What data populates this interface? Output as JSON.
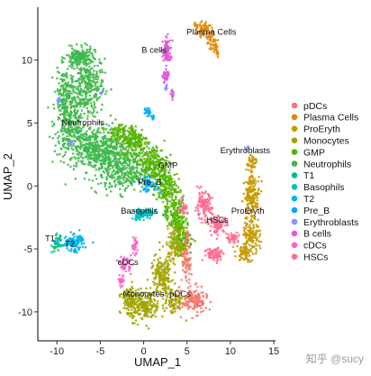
{
  "chart_data": {
    "type": "scatter",
    "title": "",
    "xlabel": "UMAP_1",
    "ylabel": "UMAP_2",
    "xlim": [
      -12.2,
      15.2
    ],
    "ylim": [
      -12.3,
      14.2
    ],
    "xticks": [
      -10,
      -5,
      0,
      5,
      10,
      15
    ],
    "yticks": [
      10,
      5,
      0,
      -5,
      -10
    ],
    "grid": false,
    "legend_position": "right",
    "legend_order": [
      "pDCs",
      "Plasma Cells",
      "ProEryth",
      "Monocytes",
      "GMP",
      "Neutrophils",
      "T1",
      "Basophils",
      "T2",
      "Pre_B",
      "Erythroblasts",
      "B cells",
      "cDCs",
      "HSCs"
    ],
    "clusters": [
      {
        "name": "Neutrophils",
        "color": "#3DB84A",
        "label_at": [
          -7,
          4.8
        ],
        "blobs": [
          [
            -6.5,
            8,
            1.8,
            2.2,
            320
          ],
          [
            -8.5,
            5,
            1.6,
            2.2,
            260
          ],
          [
            -6,
            3,
            2.6,
            1.6,
            340
          ],
          [
            -3.5,
            2.2,
            2.8,
            1.7,
            300
          ],
          [
            -7.4,
            10.2,
            1.4,
            0.7,
            160
          ],
          [
            -9.2,
            7.5,
            0.8,
            1.6,
            120
          ],
          [
            -2,
            1,
            2.2,
            1.4,
            200
          ]
        ]
      },
      {
        "name": "GMP",
        "color": "#53B400",
        "label_at": [
          2.8,
          1.4
        ],
        "blobs": [
          [
            -1,
            3.6,
            1.4,
            1.2,
            160
          ],
          [
            1,
            1.8,
            1.6,
            1.2,
            200
          ],
          [
            2.4,
            0,
            1.2,
            1.4,
            170
          ],
          [
            3.6,
            -2.2,
            1.1,
            1.6,
            170
          ],
          [
            4.5,
            -4.2,
            1.0,
            1.2,
            140
          ],
          [
            -3,
            4.2,
            1.0,
            0.8,
            80
          ]
        ]
      },
      {
        "name": "Monocytes",
        "color": "#A3A500",
        "label_at": [
          0,
          -8.8
        ],
        "blobs": [
          [
            0,
            -9.6,
            1.7,
            1.0,
            220
          ],
          [
            2.1,
            -7.2,
            1.2,
            1.5,
            180
          ],
          [
            3.6,
            -4.7,
            0.9,
            1.2,
            110
          ],
          [
            -1.7,
            -9,
            0.8,
            0.9,
            90
          ],
          [
            3.5,
            -9.2,
            1,
            0.9,
            80
          ]
        ]
      },
      {
        "name": "pDCs",
        "color": "#F8766D",
        "label_at": [
          4.2,
          -8.8
        ],
        "blobs": [
          [
            5.9,
            -9.1,
            1.3,
            0.9,
            150
          ],
          [
            4.9,
            -6.2,
            0.5,
            1.3,
            60
          ],
          [
            5,
            -4.3,
            0.3,
            0.8,
            20
          ]
        ]
      },
      {
        "name": "Plasma Cells",
        "color": "#E38900",
        "label_at": [
          7.8,
          12
        ],
        "blobs": [
          [
            6.9,
            12.4,
            0.7,
            0.5,
            60
          ],
          [
            7.7,
            11.6,
            0.5,
            0.6,
            40
          ],
          [
            8.4,
            11,
            0.3,
            0.6,
            25
          ],
          [
            6,
            12.8,
            0.2,
            0.2,
            6
          ]
        ]
      },
      {
        "name": "ProEryth",
        "color": "#C49A00",
        "label_at": [
          12,
          -2.2
        ],
        "blobs": [
          [
            12.5,
            -0.7,
            0.8,
            1.4,
            150
          ],
          [
            12.4,
            -3.8,
            0.9,
            1.3,
            120
          ],
          [
            11.6,
            -5.3,
            0.8,
            0.6,
            60
          ],
          [
            12.4,
            1.8,
            0.5,
            0.8,
            50
          ]
        ]
      },
      {
        "name": "Erythroblasts",
        "color": "#8494FF",
        "label_at": [
          11.7,
          2.6
        ],
        "blobs": [
          [
            11.9,
            3,
            0.2,
            0.2,
            8
          ],
          [
            -9.8,
            6.8,
            0.25,
            0.25,
            12
          ],
          [
            -4.9,
            7.4,
            0.2,
            0.15,
            6
          ],
          [
            -8.5,
            3.4,
            0.2,
            0.2,
            8
          ],
          [
            2.6,
            7.8,
            0.2,
            0.2,
            8
          ]
        ]
      },
      {
        "name": "HSCs",
        "color": "#FF6C91",
        "label_at": [
          8.5,
          -2.9
        ],
        "blobs": [
          [
            6.9,
            -1.6,
            0.9,
            1,
            120
          ],
          [
            8.6,
            -3.1,
            0.9,
            0.6,
            90
          ],
          [
            8.2,
            -5.4,
            1.1,
            0.5,
            80
          ],
          [
            4.6,
            -1.7,
            0.4,
            0.5,
            30
          ],
          [
            10.3,
            -4.1,
            0.6,
            0.4,
            40
          ]
        ]
      },
      {
        "name": "B cells",
        "color": "#DE5BDD",
        "label_at": [
          1.2,
          10.6
        ],
        "blobs": [
          [
            2.7,
            10.7,
            0.45,
            0.9,
            90
          ],
          [
            2.6,
            8.7,
            0.35,
            0.5,
            40
          ],
          [
            3.3,
            7.2,
            0.25,
            0.3,
            15
          ]
        ]
      },
      {
        "name": "cDCs",
        "color": "#FF61C3",
        "label_at": [
          -1.8,
          -6.3
        ],
        "blobs": [
          [
            -2.1,
            -6.2,
            0.6,
            0.6,
            50
          ],
          [
            -1,
            -4.7,
            0.35,
            0.6,
            30
          ],
          [
            -2.6,
            -7.6,
            0.3,
            0.5,
            20
          ]
        ]
      },
      {
        "name": "T1",
        "color": "#00BF7D",
        "label_at": [
          -10.8,
          -4.4
        ],
        "blobs": [
          [
            -10,
            -4.6,
            0.5,
            0.6,
            40
          ]
        ]
      },
      {
        "name": "T2",
        "color": "#00B4EF",
        "label_at": [
          -8.5,
          -4.8
        ],
        "blobs": [
          [
            -8.2,
            -4.6,
            1.2,
            0.6,
            90
          ],
          [
            -7.4,
            -4.3,
            0.5,
            0.3,
            25
          ]
        ]
      },
      {
        "name": "Basophils",
        "color": "#00BFC4",
        "label_at": [
          -0.5,
          -2.2
        ],
        "blobs": [
          [
            0.1,
            -2.2,
            1.2,
            0.4,
            80
          ],
          [
            -0.6,
            -2.4,
            0.5,
            0.3,
            25
          ]
        ]
      },
      {
        "name": "Pre_B",
        "color": "#00A9FF",
        "label_at": [
          0.7,
          0.1
        ],
        "blobs": [
          [
            0.6,
            0.1,
            1.0,
            0.5,
            60
          ],
          [
            0.4,
            5.9,
            0.3,
            0.3,
            20
          ],
          [
            1.1,
            5.5,
            0.2,
            0.2,
            8
          ]
        ]
      }
    ],
    "legend": [
      {
        "name": "pDCs",
        "color": "#F8766D"
      },
      {
        "name": "Plasma Cells",
        "color": "#E38900"
      },
      {
        "name": "ProEryth",
        "color": "#C49A00"
      },
      {
        "name": "Monocytes",
        "color": "#A3A500"
      },
      {
        "name": "GMP",
        "color": "#53B400"
      },
      {
        "name": "Neutrophils",
        "color": "#3DB84A"
      },
      {
        "name": "T1",
        "color": "#00BF7D"
      },
      {
        "name": "Basophils",
        "color": "#00BFC4"
      },
      {
        "name": "T2",
        "color": "#00B4EF"
      },
      {
        "name": "Pre_B",
        "color": "#00A9FF"
      },
      {
        "name": "Erythroblasts",
        "color": "#8494FF"
      },
      {
        "name": "B cells",
        "color": "#DE5BDD"
      },
      {
        "name": "cDCs",
        "color": "#FF61C3"
      },
      {
        "name": "HSCs",
        "color": "#FF6C91"
      }
    ]
  },
  "watermark": "知乎 @sucy"
}
